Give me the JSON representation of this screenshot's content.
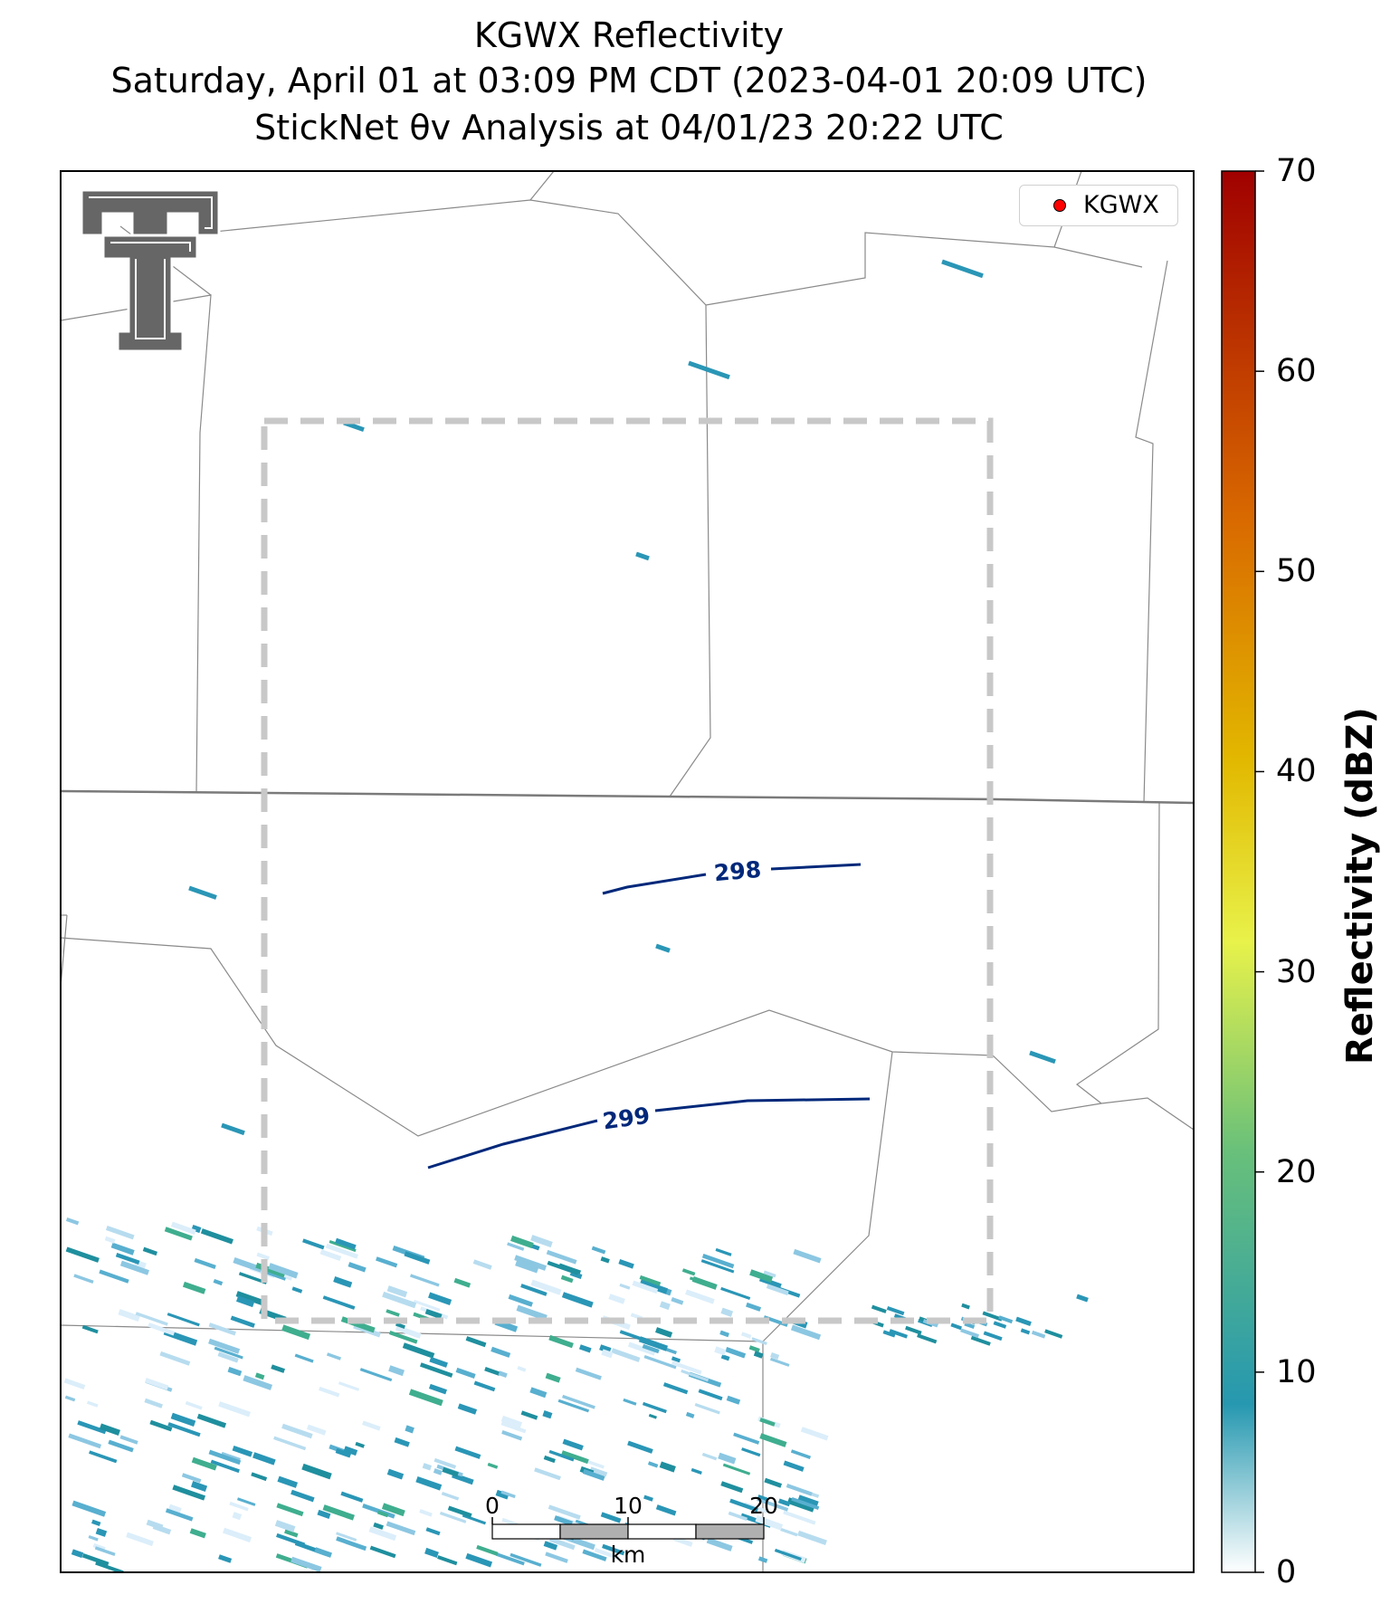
{
  "title": {
    "line1": "KGWX Reflectivity",
    "line2": "Saturday, April 01 at 03:09 PM CDT (2023-04-01 20:09 UTC)",
    "line3": "StickNet θv Analysis at 04/01/23 20:22 UTC"
  },
  "legend": {
    "label": "KGWX",
    "marker_color": "#ff0000"
  },
  "logo": {
    "icon": "double-t-logo",
    "color": "#666666"
  },
  "colorbar": {
    "label": "Reflectivity (dBZ)",
    "ticks": [
      "0",
      "10",
      "20",
      "30",
      "40",
      "50",
      "60",
      "70"
    ],
    "range": [
      0,
      70
    ],
    "colors": [
      "#ffffff",
      "#2698b0",
      "#68c07a",
      "#e8f24a",
      "#e2b800",
      "#d96a00",
      "#a00000"
    ]
  },
  "scale_bar": {
    "ticks": [
      "0",
      "10",
      "20"
    ],
    "unit": "km",
    "fill_colors": [
      "#ffffff",
      "#b0b0b0"
    ]
  },
  "chart_data": {
    "type": "contour",
    "contours": [
      {
        "level": 298,
        "label": "298",
        "color": "#00287a"
      },
      {
        "level": 299,
        "label": "299",
        "color": "#00287a"
      }
    ],
    "analysis_box_style": "dashed gray",
    "background": "radar reflectivity (sparse, mostly 0–15 dBZ) over county boundaries"
  }
}
